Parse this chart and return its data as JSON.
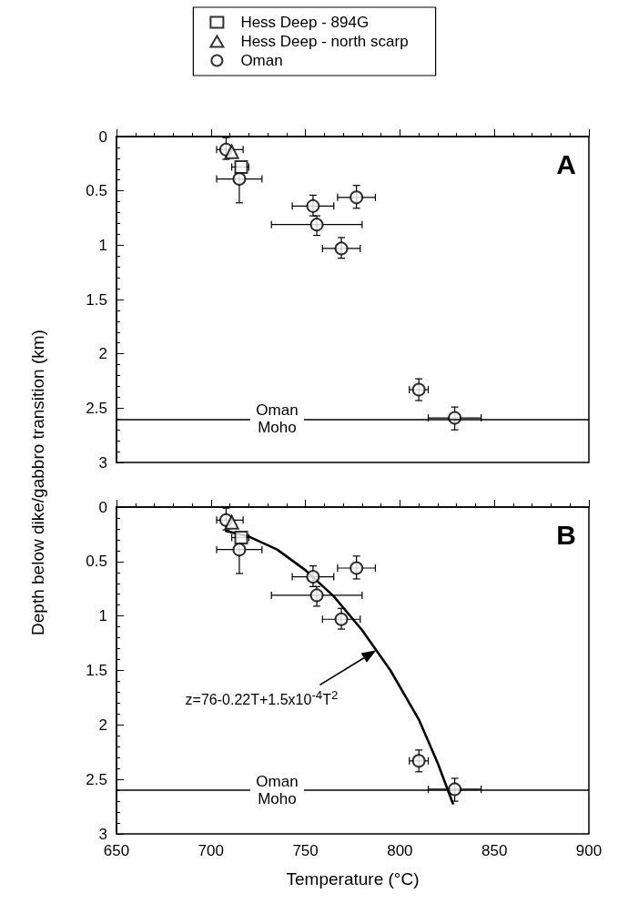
{
  "chart_data": [
    {
      "type": "scatter",
      "ylabel": "Depth below dike/gabbro transition (km)",
      "annotations": [
        "A"
      ],
      "xlim": [
        650,
        900
      ],
      "xticks": [
        650,
        700,
        750,
        800,
        850,
        900
      ],
      "ylim": [
        3,
        0
      ],
      "yticks": [
        0,
        {
          "value": 0.5,
          "label": "0.5"
        },
        1,
        {
          "value": 1.5,
          "label": "1.5"
        },
        2,
        {
          "value": 2.5,
          "label": "2.5"
        },
        3
      ],
      "tick_labels": "y",
      "legend": "top",
      "grid": false,
      "ref_lines": [
        {
          "axis": "y",
          "value": 2.6,
          "label": "Oman\nMoho",
          "color": "#000000"
        }
      ],
      "series": [
        {
          "name": "Hess Deep - 894G",
          "color": "#000000",
          "marker": "square",
          "x": [
            716
          ],
          "values": [
            0.28
          ],
          "xerrors": [
            [
              711,
              720
            ]
          ]
        },
        {
          "name": "Hess Deep - north scarp",
          "color": "#000000",
          "marker": "triangle",
          "x": [
            711
          ],
          "values": [
            0.14
          ]
        },
        {
          "name": "Oman",
          "color": "#000000",
          "marker": "circle",
          "x": [
            708,
            715,
            754,
            777,
            756,
            769,
            810,
            829
          ],
          "values": [
            0.12,
            0.39,
            0.64,
            0.56,
            0.81,
            1.03,
            2.33,
            2.59
          ],
          "xerrors": [
            [
              703,
              717
            ],
            [
              703,
              727
            ],
            [
              743,
              765
            ],
            [
              767,
              787
            ],
            [
              732,
              780
            ],
            [
              759,
              779
            ],
            [
              805,
              815
            ],
            [
              815,
              843
            ]
          ],
          "errors": [
            [
              0.01,
              0.21
            ],
            [
              0.33,
              0.61
            ],
            [
              0.54,
              0.73
            ],
            [
              0.45,
              0.66
            ],
            [
              0.73,
              0.91
            ],
            [
              0.93,
              1.12
            ],
            [
              2.23,
              2.43
            ],
            [
              2.49,
              2.7
            ]
          ]
        }
      ]
    },
    {
      "type": "scatter",
      "xlabel": "Temperature (°C)",
      "annotations": [
        "B",
        "z=76-0.22T+1.5x10$^{-4}$T$^{2}$"
      ],
      "xlim": [
        650,
        900
      ],
      "xticks": [
        650,
        700,
        750,
        800,
        850,
        900
      ],
      "ylim": [
        3,
        0
      ],
      "yticks": [
        0,
        {
          "value": 0.5,
          "label": "0.5"
        },
        1,
        {
          "value": 1.5,
          "label": "1.5"
        },
        2,
        {
          "value": 2.5,
          "label": "2.5"
        },
        3
      ],
      "legend": false,
      "grid": false,
      "ref_lines": [
        {
          "axis": "y",
          "value": 2.6,
          "label": "Oman\nMoho",
          "color": "#000000"
        }
      ],
      "series": [
        {
          "color": "#000000",
          "marker": "square",
          "x": [
            716
          ],
          "values": [
            0.28
          ],
          "xerrors": [
            [
              711,
              720
            ]
          ]
        },
        {
          "color": "#000000",
          "marker": "triangle",
          "x": [
            711
          ],
          "values": [
            0.14
          ]
        },
        {
          "color": "#000000",
          "marker": "circle",
          "x": [
            708,
            715,
            754,
            777,
            756,
            769,
            810,
            829
          ],
          "values": [
            0.12,
            0.39,
            0.64,
            0.56,
            0.81,
            1.03,
            2.33,
            2.59
          ],
          "xerrors": [
            [
              703,
              717
            ],
            [
              703,
              727
            ],
            [
              743,
              765
            ],
            [
              767,
              787
            ],
            [
              732,
              780
            ],
            [
              759,
              779
            ],
            [
              805,
              815
            ],
            [
              815,
              843
            ]
          ],
          "errors": [
            [
              0.01,
              0.21
            ],
            [
              0.33,
              0.61
            ],
            [
              0.54,
              0.73
            ],
            [
              0.45,
              0.66
            ],
            [
              0.73,
              0.91
            ],
            [
              0.93,
              1.12
            ],
            [
              2.23,
              2.43
            ],
            [
              2.49,
              2.7
            ]
          ]
        },
        {
          "type": "line",
          "color": "#000000",
          "marker": "none",
          "line_style": "solid",
          "x": [
            708,
            720,
            735,
            750,
            765,
            780,
            795,
            810,
            820,
            828
          ],
          "values": [
            0.22,
            0.27,
            0.39,
            0.58,
            0.82,
            1.13,
            1.5,
            1.95,
            2.35,
            2.72
          ]
        }
      ]
    }
  ]
}
